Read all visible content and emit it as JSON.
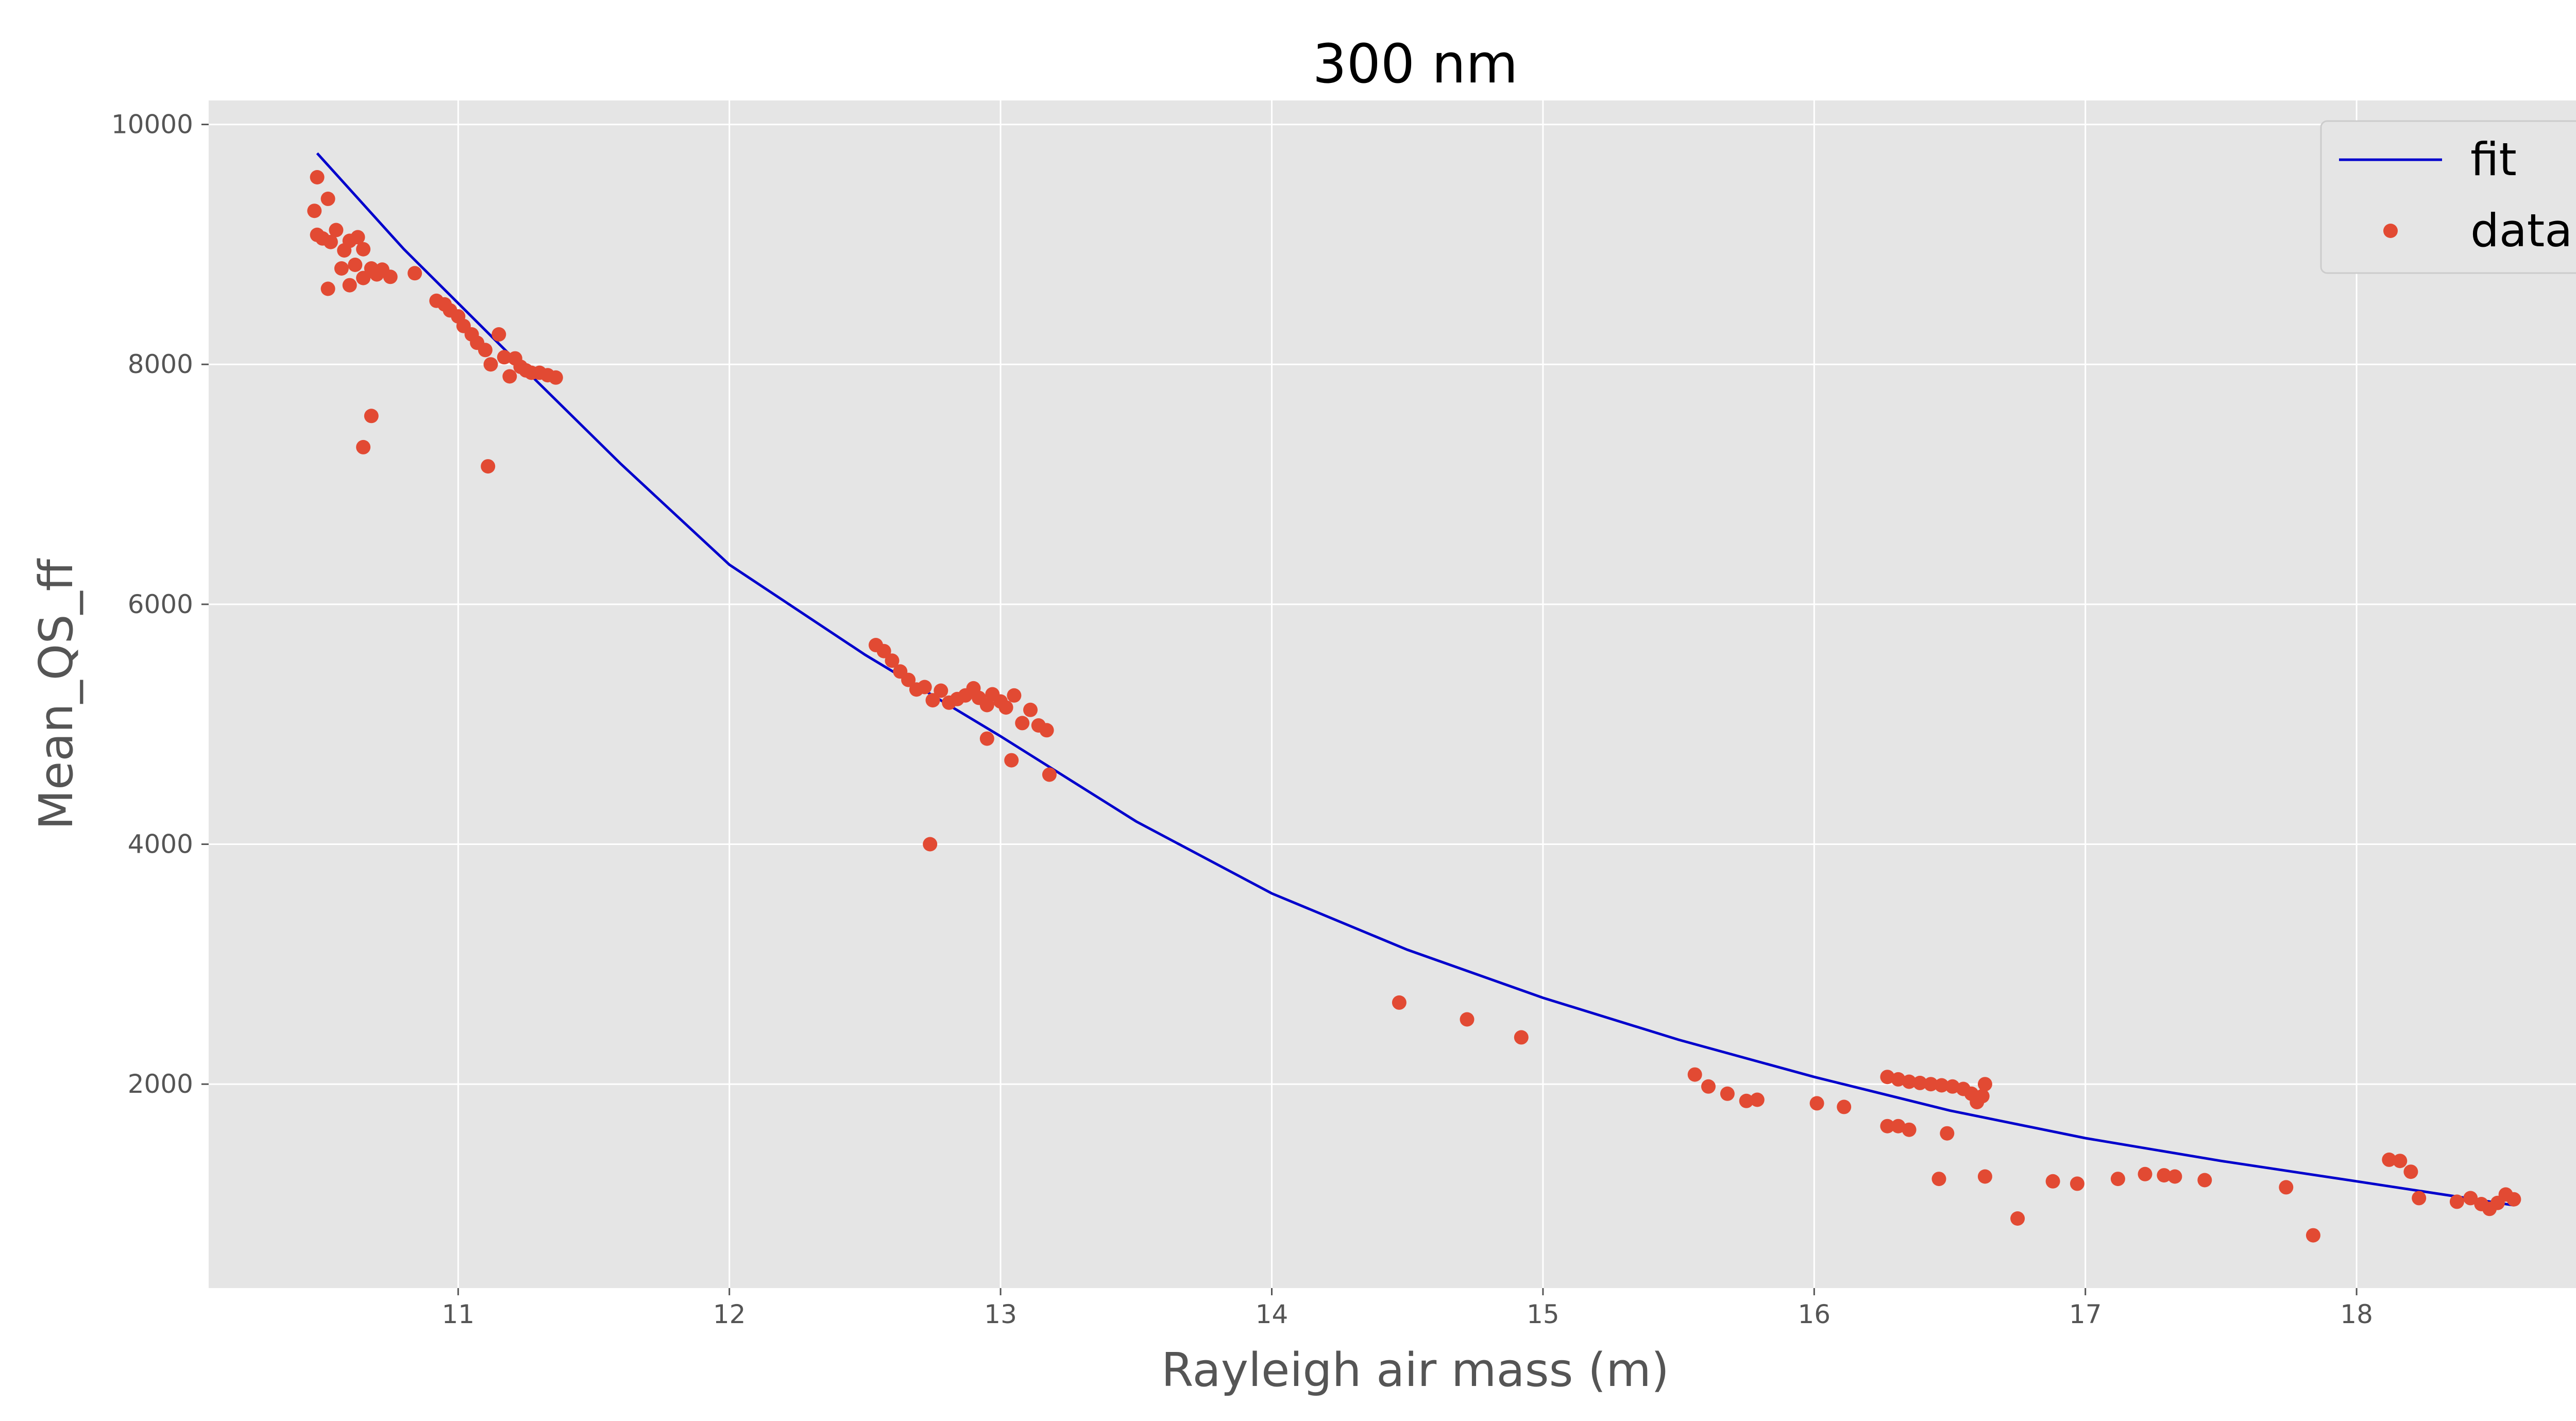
{
  "chart_data": {
    "type": "scatter",
    "title": "300 nm",
    "xlabel": "Rayleigh air mass (m)",
    "ylabel": "Mean_QS_ff",
    "xlim": [
      10.08,
      18.98
    ],
    "ylim": [
      300,
      10200
    ],
    "xticks": [
      11,
      12,
      13,
      14,
      15,
      16,
      17,
      18
    ],
    "yticks": [
      2000,
      4000,
      6000,
      8000,
      10000
    ],
    "xtick_labels": [
      "11",
      "12",
      "13",
      "14",
      "15",
      "16",
      "17",
      "18"
    ],
    "ytick_labels": [
      "2000",
      "4000",
      "6000",
      "8000",
      "10000"
    ],
    "grid": true,
    "legend_position": "top-right",
    "colors": {
      "fit": "#0000cc",
      "data": "#e24a33",
      "background": "#e5e5e5",
      "grid": "#ffffff"
    },
    "series": [
      {
        "name": "fit",
        "kind": "line",
        "x": [
          10.48,
          10.8,
          11.2,
          11.6,
          12.0,
          12.5,
          13.0,
          13.5,
          14.0,
          14.5,
          15.0,
          15.5,
          16.0,
          16.5,
          17.0,
          17.5,
          18.0,
          18.58
        ],
        "y": [
          9760,
          8960,
          8060,
          7170,
          6330,
          5580,
          4900,
          4190,
          3590,
          3120,
          2720,
          2370,
          2060,
          1780,
          1550,
          1360,
          1190,
          990
        ]
      },
      {
        "name": "data",
        "kind": "scatter",
        "points": [
          [
            10.47,
            9280
          ],
          [
            10.48,
            9080
          ],
          [
            10.48,
            9560
          ],
          [
            10.5,
            9050
          ],
          [
            10.52,
            9380
          ],
          [
            10.53,
            9020
          ],
          [
            10.55,
            9120
          ],
          [
            10.57,
            8800
          ],
          [
            10.58,
            8950
          ],
          [
            10.6,
            9030
          ],
          [
            10.62,
            8830
          ],
          [
            10.63,
            9060
          ],
          [
            10.65,
            8960
          ],
          [
            10.52,
            8630
          ],
          [
            10.6,
            8660
          ],
          [
            10.65,
            8720
          ],
          [
            10.68,
            8800
          ],
          [
            10.7,
            8750
          ],
          [
            10.72,
            8790
          ],
          [
            10.75,
            8730
          ],
          [
            10.65,
            7310
          ],
          [
            10.68,
            7570
          ],
          [
            10.84,
            8760
          ],
          [
            10.92,
            8530
          ],
          [
            10.95,
            8500
          ],
          [
            10.97,
            8450
          ],
          [
            11.0,
            8400
          ],
          [
            11.02,
            8320
          ],
          [
            11.05,
            8250
          ],
          [
            11.07,
            8180
          ],
          [
            11.1,
            8120
          ],
          [
            11.12,
            8000
          ],
          [
            11.15,
            8250
          ],
          [
            11.17,
            8060
          ],
          [
            11.19,
            7900
          ],
          [
            11.21,
            8050
          ],
          [
            11.23,
            7980
          ],
          [
            11.25,
            7950
          ],
          [
            11.27,
            7930
          ],
          [
            11.3,
            7930
          ],
          [
            11.33,
            7910
          ],
          [
            11.36,
            7890
          ],
          [
            11.11,
            7150
          ],
          [
            12.54,
            5660
          ],
          [
            12.57,
            5610
          ],
          [
            12.6,
            5530
          ],
          [
            12.63,
            5440
          ],
          [
            12.66,
            5370
          ],
          [
            12.69,
            5290
          ],
          [
            12.72,
            5310
          ],
          [
            12.75,
            5200
          ],
          [
            12.78,
            5280
          ],
          [
            12.81,
            5180
          ],
          [
            12.84,
            5210
          ],
          [
            12.87,
            5240
          ],
          [
            12.9,
            5300
          ],
          [
            12.92,
            5220
          ],
          [
            12.95,
            5160
          ],
          [
            12.97,
            5250
          ],
          [
            13.0,
            5190
          ],
          [
            13.02,
            5140
          ],
          [
            13.05,
            5240
          ],
          [
            13.08,
            5010
          ],
          [
            13.11,
            5120
          ],
          [
            13.14,
            4990
          ],
          [
            13.17,
            4950
          ],
          [
            12.95,
            4880
          ],
          [
            13.04,
            4700
          ],
          [
            13.18,
            4580
          ],
          [
            12.74,
            4000
          ],
          [
            14.47,
            2680
          ],
          [
            14.72,
            2540
          ],
          [
            14.92,
            2390
          ],
          [
            15.56,
            2080
          ],
          [
            15.61,
            1980
          ],
          [
            15.68,
            1920
          ],
          [
            15.75,
            1860
          ],
          [
            15.79,
            1870
          ],
          [
            16.01,
            1840
          ],
          [
            16.11,
            1810
          ],
          [
            16.27,
            2060
          ],
          [
            16.31,
            2040
          ],
          [
            16.35,
            2020
          ],
          [
            16.39,
            2010
          ],
          [
            16.43,
            2000
          ],
          [
            16.47,
            1990
          ],
          [
            16.51,
            1980
          ],
          [
            16.55,
            1960
          ],
          [
            16.58,
            1920
          ],
          [
            16.6,
            1850
          ],
          [
            16.62,
            1900
          ],
          [
            16.63,
            2000
          ],
          [
            16.27,
            1650
          ],
          [
            16.31,
            1650
          ],
          [
            16.35,
            1620
          ],
          [
            16.49,
            1590
          ],
          [
            16.46,
            1210
          ],
          [
            16.63,
            1230
          ],
          [
            16.75,
            880
          ],
          [
            16.88,
            1190
          ],
          [
            16.97,
            1170
          ],
          [
            17.12,
            1210
          ],
          [
            17.22,
            1250
          ],
          [
            17.29,
            1240
          ],
          [
            17.33,
            1230
          ],
          [
            17.44,
            1200
          ],
          [
            17.74,
            1140
          ],
          [
            17.84,
            740
          ],
          [
            18.12,
            1370
          ],
          [
            18.16,
            1360
          ],
          [
            18.2,
            1270
          ],
          [
            18.23,
            1050
          ],
          [
            18.37,
            1020
          ],
          [
            18.42,
            1050
          ],
          [
            18.46,
            1000
          ],
          [
            18.49,
            960
          ],
          [
            18.52,
            1010
          ],
          [
            18.55,
            1080
          ],
          [
            18.58,
            1040
          ]
        ]
      }
    ]
  }
}
